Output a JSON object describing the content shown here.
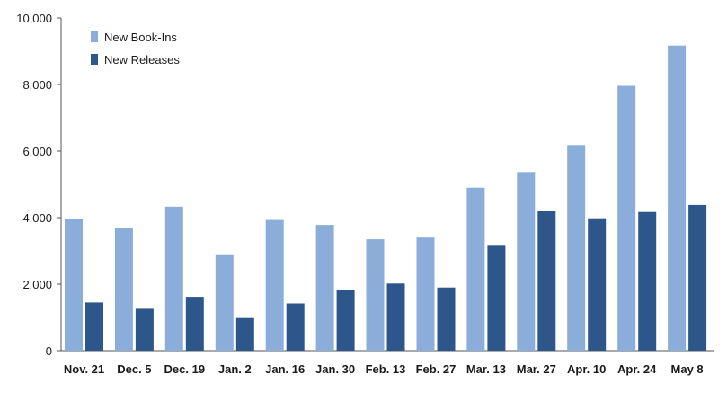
{
  "chart_data": {
    "type": "bar",
    "title": "",
    "xlabel": "",
    "ylabel": "",
    "ylim": [
      0,
      10000
    ],
    "yticks": [
      0,
      2000,
      4000,
      6000,
      8000,
      10000
    ],
    "ytick_labels": [
      "0",
      "2,000",
      "4,000",
      "6,000",
      "8,000",
      "10,000"
    ],
    "categories": [
      "Nov. 21",
      "Dec. 5",
      "Dec. 19",
      "Jan. 2",
      "Jan. 16",
      "Jan. 30",
      "Feb. 13",
      "Feb. 27",
      "Mar. 13",
      "Mar. 27",
      "Apr. 10",
      "Apr. 24",
      "May 8"
    ],
    "series": [
      {
        "name": "New Book-Ins",
        "color": "#8aaed9",
        "values": [
          3950,
          3700,
          4330,
          2900,
          3930,
          3780,
          3350,
          3400,
          4900,
          5370,
          6180,
          7960,
          9170
        ]
      },
      {
        "name": "New Releases",
        "color": "#2d568b",
        "values": [
          1450,
          1260,
          1620,
          980,
          1420,
          1810,
          2020,
          1900,
          3180,
          4190,
          3980,
          4170,
          4380
        ]
      }
    ],
    "grid": false,
    "legend": "top-left"
  }
}
